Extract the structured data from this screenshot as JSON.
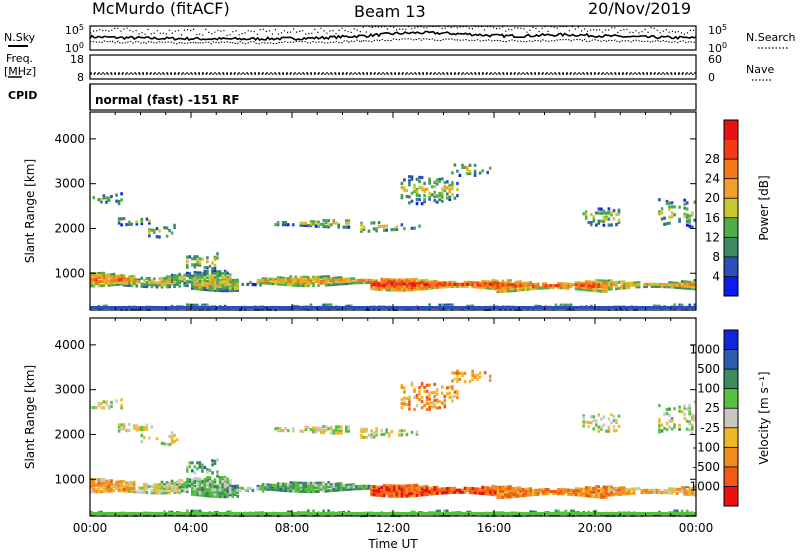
{
  "header": {
    "station": "McMurdo (fitACF)",
    "beam": "Beam 13",
    "date": "20/Nov/2019"
  },
  "labels": {
    "nsky": "N.Sky",
    "nsearch": "N.Search",
    "freq_line1": "Freq.",
    "freq_line2": "[MHz]",
    "nave": "Nave",
    "cpid": "CPID",
    "mode": "normal (fast) -151 RF"
  },
  "chart_data": [
    {
      "type": "line",
      "name": "noise-panel",
      "left_ticks": [
        "10^5",
        "10^0"
      ],
      "right_ticks": [
        "10^5",
        "10^0"
      ],
      "series": [
        {
          "name": "N.Sky",
          "x_hours": [
            0,
            1,
            2,
            3,
            4,
            5,
            6,
            7,
            8,
            9,
            10,
            11,
            12,
            13,
            14,
            15,
            16,
            17,
            18,
            19,
            20,
            21,
            22,
            23,
            24
          ],
          "level": [
            0.55,
            0.52,
            0.5,
            0.48,
            0.47,
            0.46,
            0.46,
            0.47,
            0.48,
            0.5,
            0.55,
            0.6,
            0.68,
            0.72,
            0.7,
            0.66,
            0.6,
            0.58,
            0.62,
            0.64,
            0.6,
            0.56,
            0.54,
            0.52,
            0.5
          ]
        },
        {
          "name": "N.Search",
          "x_hours": [
            0,
            1,
            2,
            3,
            4,
            5,
            6,
            7,
            8,
            9,
            10,
            11,
            12,
            13,
            14,
            15,
            16,
            17,
            18,
            19,
            20,
            21,
            22,
            23,
            24
          ],
          "level": [
            0.35,
            0.33,
            0.32,
            0.31,
            0.3,
            0.3,
            0.3,
            0.31,
            0.32,
            0.33,
            0.35,
            0.38,
            0.42,
            0.44,
            0.43,
            0.41,
            0.39,
            0.38,
            0.4,
            0.41,
            0.39,
            0.37,
            0.36,
            0.35,
            0.34
          ]
        }
      ]
    },
    {
      "type": "line",
      "name": "frequency-panel",
      "left_ticks": [
        "18",
        "8"
      ],
      "right_ticks": [
        "60",
        "0"
      ],
      "series": [
        {
          "name": "Freq",
          "value_mhz": 10.5
        },
        {
          "name": "Nave",
          "value": 12
        }
      ]
    },
    {
      "type": "heatmap",
      "name": "power-panel",
      "ylabel": "Slant Range [km]",
      "yticks": [
        1000,
        2000,
        3000,
        4000
      ],
      "ylim": [
        180,
        4600
      ],
      "colorbar": {
        "label": "Power [dB]",
        "ticks": [
          "4",
          "8",
          "12",
          "16",
          "20",
          "24",
          "28"
        ],
        "colors": [
          "#0a1cf0",
          "#2850b8",
          "#3d8a64",
          "#4fae4a",
          "#c8c830",
          "#f0a028",
          "#f07818",
          "#f03c10",
          "#e81010"
        ]
      }
    },
    {
      "type": "heatmap",
      "name": "velocity-panel",
      "ylabel": "Slant Range [km]",
      "xlabel": "Time UT",
      "xticks": [
        "00:00",
        "04:00",
        "08:00",
        "12:00",
        "16:00",
        "20:00",
        "00:00"
      ],
      "yticks": [
        1000,
        2000,
        3000,
        4000
      ],
      "ylim": [
        180,
        4600
      ],
      "colorbar": {
        "label": "Velocity [m s⁻¹]",
        "ticks": [
          "1000",
          "500",
          "100",
          "25",
          "-25",
          "-100",
          "-500",
          "-1000"
        ],
        "colors": [
          "#1028d8",
          "#2e5ab0",
          "#3c8c5c",
          "#58c040",
          "#c8c8c0",
          "#f0b828",
          "#f08c1c",
          "#f05a14",
          "#e81010"
        ]
      }
    }
  ]
}
